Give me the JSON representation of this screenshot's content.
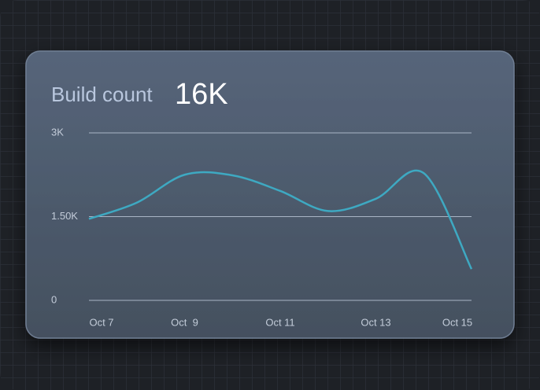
{
  "chart_data": {
    "type": "line",
    "title": "Build count",
    "headline": "16K",
    "categories": [
      "Oct 7",
      null,
      "Oct  9",
      null,
      "Oct 11",
      null,
      "Oct 13",
      null,
      "Oct 15"
    ],
    "series": [
      {
        "name": "Build count",
        "color": "#3ea9c2",
        "values": [
          1460,
          1750,
          2250,
          2240,
          1960,
          1600,
          1820,
          2280,
          560
        ]
      }
    ],
    "ylim": [
      0,
      3000
    ],
    "yticks": [
      0,
      {
        "value": 1500,
        "label": "1.50K"
      },
      {
        "value": 3000,
        "label": "3K"
      }
    ],
    "grid": true
  }
}
